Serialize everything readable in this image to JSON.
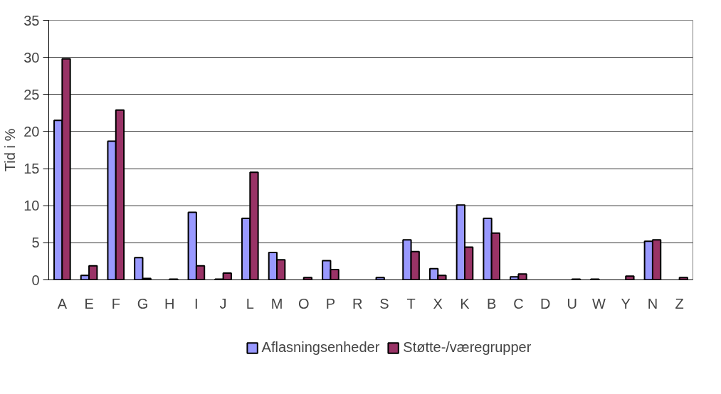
{
  "chart_data": {
    "type": "bar",
    "ylabel": "Tid i %",
    "categories": [
      "A",
      "E",
      "F",
      "G",
      "H",
      "I",
      "J",
      "L",
      "M",
      "O",
      "P",
      "R",
      "S",
      "T",
      "X",
      "K",
      "B",
      "C",
      "D",
      "U",
      "W",
      "Y",
      "N",
      "Z"
    ],
    "series": [
      {
        "name": "Aflasningsenheder",
        "color": "#9999ff",
        "values": [
          21.5,
          0.6,
          18.7,
          3.0,
          null,
          9.1,
          0.1,
          8.3,
          3.7,
          null,
          2.6,
          null,
          0.3,
          5.4,
          1.5,
          10.1,
          8.3,
          0.4,
          null,
          null,
          0.1,
          null,
          5.2,
          null
        ]
      },
      {
        "name": "Støtte-/væregrupper",
        "color": "#993366",
        "values": [
          29.8,
          1.9,
          22.9,
          0.2,
          0.1,
          1.9,
          0.9,
          14.5,
          2.7,
          0.3,
          1.4,
          null,
          null,
          3.8,
          0.6,
          4.4,
          6.3,
          0.8,
          null,
          0.1,
          null,
          0.5,
          5.4,
          0.3
        ]
      }
    ],
    "ylim": [
      0,
      35
    ],
    "yticks": [
      0,
      5,
      10,
      15,
      20,
      25,
      30,
      35
    ],
    "grid": "y",
    "legend": "bottom"
  }
}
